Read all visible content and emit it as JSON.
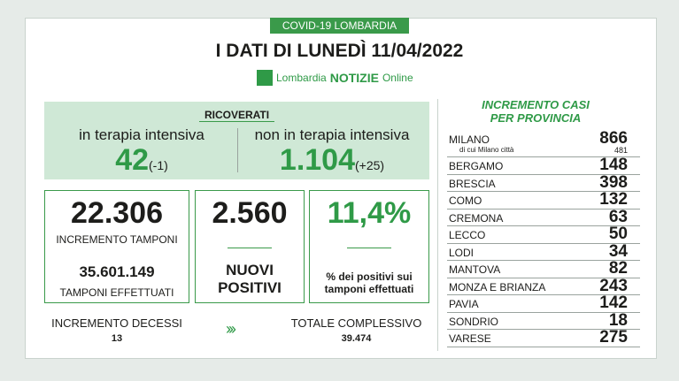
{
  "header": {
    "tab": "COVID-19 LOMBARDIA",
    "title": "I DATI DI LUNEDÌ 11/04/2022",
    "logo": {
      "brand": "Lombardia",
      "name": "NOTIZIE",
      "suffix": "Online"
    }
  },
  "ricoverati": {
    "label": "RICOVERATI",
    "intensiva": {
      "label": "in terapia intensiva",
      "value": "42",
      "delta": "(-1)"
    },
    "non_intensiva": {
      "label": "non in terapia intensiva",
      "value": "1.104",
      "delta": "(+25)"
    }
  },
  "tamponi": {
    "increment": "22.306",
    "increment_label": "INCREMENTO TAMPONI",
    "total": "35.601.149",
    "total_label": "TAMPONI EFFETTUATI"
  },
  "positivi": {
    "value": "2.560",
    "label": "NUOVI POSITIVI"
  },
  "percentuale": {
    "value": "11,4%",
    "label": "% dei positivi sui tamponi effettuati"
  },
  "decessi": {
    "label": "INCREMENTO DECESSI",
    "value": "13"
  },
  "totale": {
    "label": "TOTALE COMPLESSIVO",
    "value": "39.474"
  },
  "province": {
    "title": "INCREMENTO CASI PER PROVINCIA",
    "rows": [
      {
        "name": "MILANO",
        "value": "866",
        "note": "di cui Milano città",
        "note_value": "481"
      },
      {
        "name": "BERGAMO",
        "value": "148"
      },
      {
        "name": "BRESCIA",
        "value": "398"
      },
      {
        "name": "COMO",
        "value": "132"
      },
      {
        "name": "CREMONA",
        "value": "63"
      },
      {
        "name": "LECCO",
        "value": "50"
      },
      {
        "name": "LODI",
        "value": "34"
      },
      {
        "name": "MANTOVA",
        "value": "82"
      },
      {
        "name": "MONZA E BRIANZA",
        "value": "243"
      },
      {
        "name": "PAVIA",
        "value": "142"
      },
      {
        "name": "SONDRIO",
        "value": "18"
      },
      {
        "name": "VARESE",
        "value": "275"
      }
    ]
  }
}
